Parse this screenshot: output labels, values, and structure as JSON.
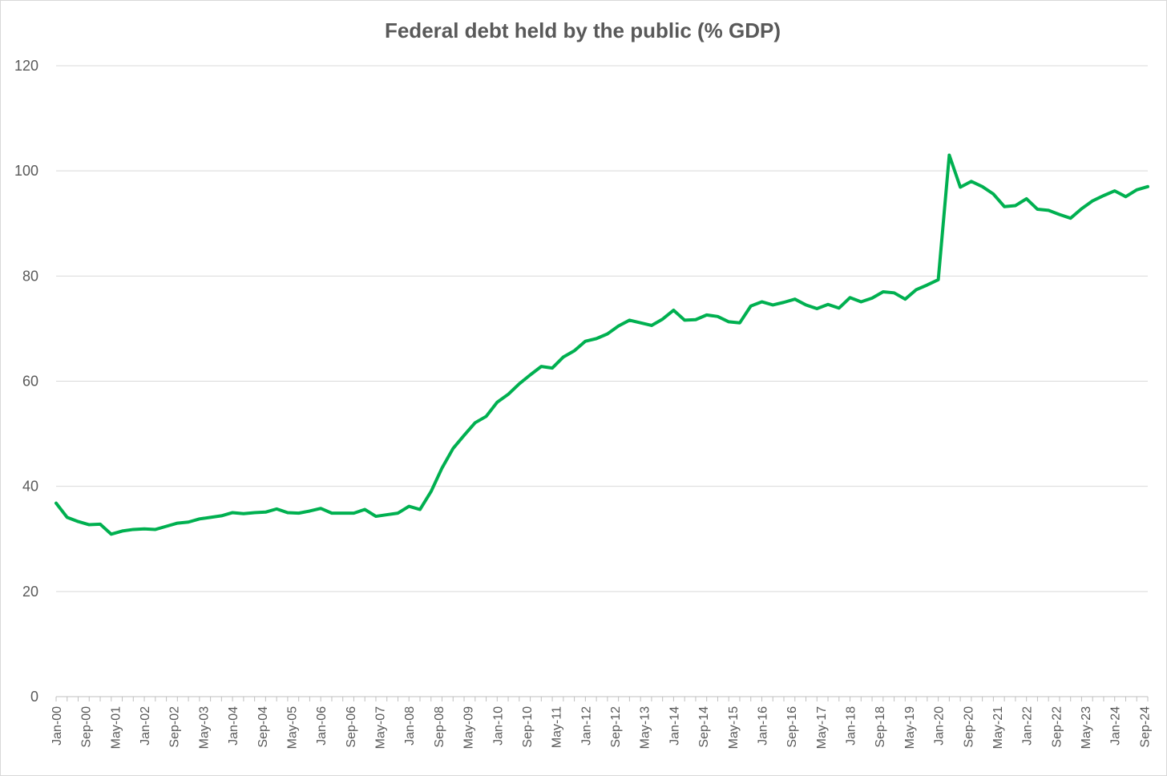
{
  "chart_data": {
    "type": "line",
    "title": "Federal debt held by the public (% GDP)",
    "xlabel": "",
    "ylabel": "",
    "ylim": [
      0,
      120
    ],
    "yticks": [
      0,
      20,
      40,
      60,
      80,
      100,
      120
    ],
    "grid": true,
    "legend": "none",
    "x_tick_labels": [
      "Jan-00",
      "Sep-00",
      "May-01",
      "Jan-02",
      "Sep-02",
      "May-03",
      "Jan-04",
      "Sep-04",
      "May-05",
      "Jan-06",
      "Sep-06",
      "May-07",
      "Jan-08",
      "Sep-08",
      "May-09",
      "Jan-10",
      "Sep-10",
      "May-11",
      "Jan-12",
      "Sep-12",
      "May-13",
      "Jan-14",
      "Sep-14",
      "May-15",
      "Jan-16",
      "Sep-16",
      "May-17",
      "Jan-18",
      "Sep-18",
      "May-19",
      "Jan-20",
      "Sep-20",
      "May-21",
      "Jan-22",
      "Sep-22",
      "May-23",
      "Jan-24",
      "Sep-24"
    ],
    "series": [
      {
        "name": "Federal debt held by the public (% GDP)",
        "color": "#00b050",
        "frequency": "quarterly",
        "start": "Jan-00",
        "values": [
          36.8,
          34.1,
          33.3,
          32.7,
          32.8,
          30.9,
          31.5,
          31.8,
          31.9,
          31.8,
          32.4,
          33.0,
          33.2,
          33.8,
          34.1,
          34.4,
          35.0,
          34.8,
          35.0,
          35.1,
          35.7,
          35.0,
          34.9,
          35.3,
          35.8,
          34.9,
          34.9,
          34.9,
          35.6,
          34.3,
          34.6,
          34.9,
          36.2,
          35.6,
          39.0,
          43.5,
          47.2,
          49.7,
          52.1,
          53.3,
          56.0,
          57.5,
          59.5,
          61.2,
          62.8,
          62.5,
          64.6,
          65.8,
          67.6,
          68.1,
          69.0,
          70.5,
          71.6,
          71.1,
          70.6,
          71.8,
          73.5,
          71.6,
          71.7,
          72.6,
          72.3,
          71.3,
          71.1,
          74.3,
          75.1,
          74.5,
          75.0,
          75.6,
          74.5,
          73.8,
          74.6,
          73.9,
          75.9,
          75.1,
          75.8,
          77.0,
          76.8,
          75.6,
          77.4,
          78.3,
          79.3,
          103.0,
          96.9,
          98.0,
          97.0,
          95.6,
          93.2,
          93.4,
          94.7,
          92.7,
          92.5,
          91.7,
          91.0,
          92.8,
          94.3,
          95.3,
          96.2,
          95.1,
          96.4,
          97.0
        ]
      }
    ]
  }
}
